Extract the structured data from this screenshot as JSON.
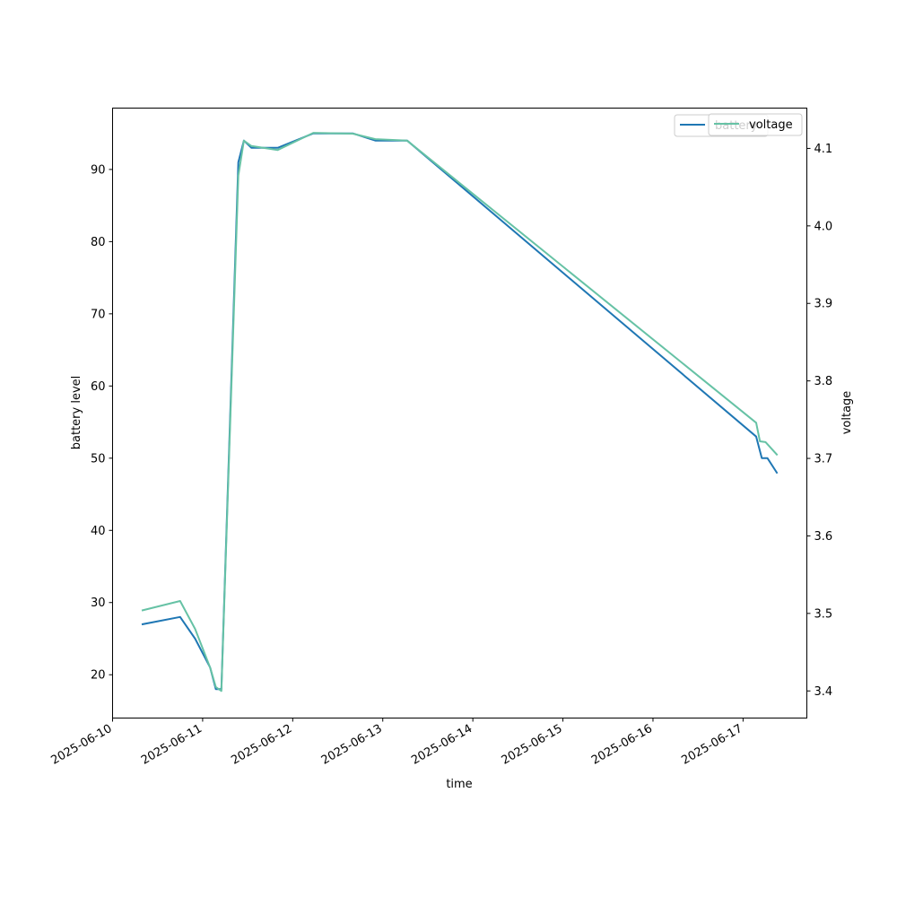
{
  "chart_data": {
    "type": "line",
    "xlabel": "time",
    "ylabel_left": "battery level",
    "ylabel_right": "voltage",
    "x_tick_labels": [
      "2025-06-10",
      "2025-06-11",
      "2025-06-12",
      "2025-06-13",
      "2025-06-14",
      "2025-06-15",
      "2025-06-16",
      "2025-06-17"
    ],
    "y_left_ticks": [
      20,
      30,
      40,
      50,
      60,
      70,
      80,
      90
    ],
    "y_right_ticks": [
      "3.4",
      "3.5",
      "3.6",
      "3.7",
      "3.8",
      "3.9",
      "4.0",
      "4.1"
    ],
    "xlim": [
      "2025-06-10T00:00",
      "2025-06-17T17:00"
    ],
    "ylim_left": [
      14,
      98.5
    ],
    "ylim_right": [
      3.365,
      4.152
    ],
    "grid": false,
    "legend_placement": "upper-right",
    "series": [
      {
        "name": "battery",
        "axis": "left",
        "color": "#1f77b4",
        "points": [
          [
            "2025-06-10T08:00",
            27
          ],
          [
            "2025-06-10T18:00",
            28
          ],
          [
            "2025-06-10T22:00",
            25
          ],
          [
            "2025-06-11T02:00",
            21
          ],
          [
            "2025-06-11T03:30",
            18
          ],
          [
            "2025-06-11T05:00",
            18
          ],
          [
            "2025-06-11T09:30",
            91
          ],
          [
            "2025-06-11T11:00",
            94
          ],
          [
            "2025-06-11T13:00",
            93
          ],
          [
            "2025-06-11T20:00",
            93
          ],
          [
            "2025-06-12T05:30",
            95
          ],
          [
            "2025-06-12T16:00",
            95
          ],
          [
            "2025-06-12T22:00",
            94
          ],
          [
            "2025-06-13T06:30",
            94
          ],
          [
            "2025-06-17T03:30",
            53
          ],
          [
            "2025-06-17T05:00",
            50
          ],
          [
            "2025-06-17T06:30",
            50
          ],
          [
            "2025-06-17T09:00",
            48
          ]
        ]
      },
      {
        "name": "voltage",
        "axis": "right",
        "color": "#66c2a5",
        "points": [
          [
            "2025-06-10T08:00",
            3.504
          ],
          [
            "2025-06-10T18:00",
            3.516
          ],
          [
            "2025-06-10T22:00",
            3.48
          ],
          [
            "2025-06-11T02:00",
            3.43
          ],
          [
            "2025-06-11T03:30",
            3.405
          ],
          [
            "2025-06-11T05:00",
            3.4
          ],
          [
            "2025-06-11T09:30",
            4.065
          ],
          [
            "2025-06-11T11:00",
            4.11
          ],
          [
            "2025-06-11T13:00",
            4.103
          ],
          [
            "2025-06-11T20:00",
            4.098
          ],
          [
            "2025-06-12T05:30",
            4.12
          ],
          [
            "2025-06-12T16:00",
            4.119
          ],
          [
            "2025-06-12T22:00",
            4.112
          ],
          [
            "2025-06-13T06:30",
            4.11
          ],
          [
            "2025-06-17T03:30",
            3.746
          ],
          [
            "2025-06-17T04:30",
            3.722
          ],
          [
            "2025-06-17T06:00",
            3.721
          ],
          [
            "2025-06-17T09:00",
            3.705
          ]
        ]
      }
    ]
  }
}
